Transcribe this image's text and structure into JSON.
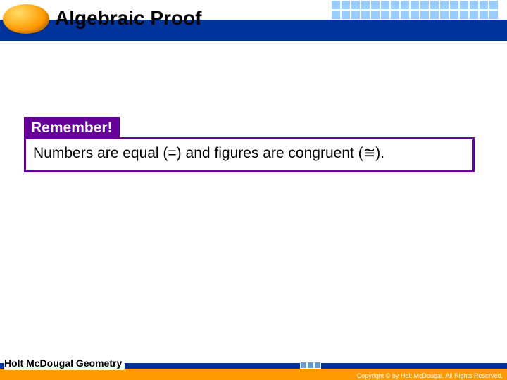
{
  "header": {
    "title": "Algebraic Proof"
  },
  "callout": {
    "tab_label": "Remember!",
    "body_text": "Numbers are equal (=) and figures are congruent (≅).",
    "tab_bg": "#660099",
    "tab_fg": "#ffffff",
    "border_color": "#660099"
  },
  "footer": {
    "left_text": "Holt McDougal Geometry",
    "copyright": "Copyright © by Holt McDougal. All Rights Reserved."
  },
  "colors": {
    "header_blue": "#003399",
    "grid_blue": "#99ccff",
    "footer_orange": "#ff9900",
    "oval_gradient_light": "#ffdd66",
    "oval_gradient_mid": "#ff9900",
    "oval_gradient_dark": "#cc6600"
  }
}
